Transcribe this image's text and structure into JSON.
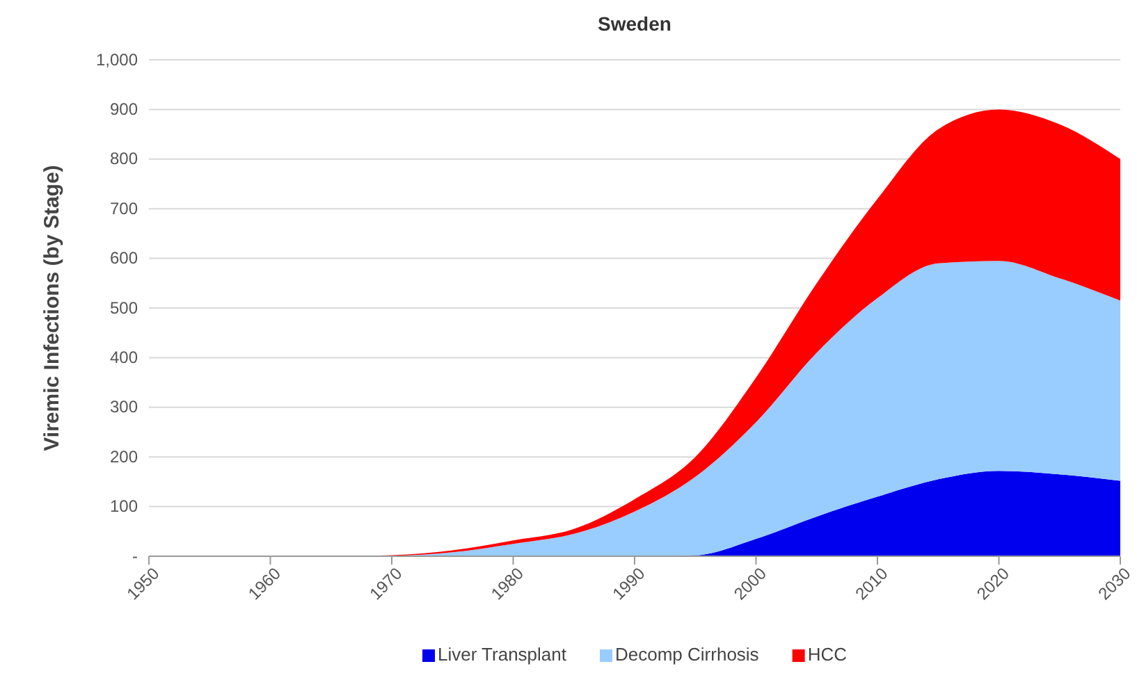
{
  "chart_data": {
    "type": "area",
    "stacked": true,
    "title": "Sweden",
    "ylabel": "Viremic Infections (by Stage)",
    "x": [
      1950,
      1960,
      1965,
      1970,
      1975,
      1980,
      1985,
      1990,
      1995,
      2000,
      2005,
      2010,
      2015,
      2020,
      2025,
      2030
    ],
    "series": [
      {
        "name": "Liver Transplant",
        "color": "#0000ee",
        "values": [
          0,
          0,
          0,
          0,
          0,
          0,
          0,
          0,
          2,
          35,
          80,
          120,
          155,
          172,
          165,
          152
        ]
      },
      {
        "name": "Decomp Cirrhosis",
        "color": "#99ccff",
        "values": [
          0,
          0,
          0,
          1,
          8,
          25,
          45,
          90,
          158,
          235,
          330,
          400,
          435,
          423,
          395,
          363
        ]
      },
      {
        "name": "HCC",
        "color": "#ff0000",
        "values": [
          0,
          0,
          0,
          1,
          4,
          7,
          10,
          25,
          40,
          90,
          140,
          200,
          270,
          305,
          310,
          285
        ]
      }
    ],
    "xlim": [
      1950,
      2030
    ],
    "xticks": [
      1950,
      1960,
      1970,
      1980,
      1990,
      2000,
      2010,
      2020,
      2030
    ],
    "ylim": [
      0,
      1000
    ],
    "yticks": [
      {
        "value": 0,
        "label": "-"
      },
      100,
      200,
      300,
      400,
      500,
      600,
      700,
      800,
      900,
      {
        "value": 1000,
        "label": "1,000"
      }
    ],
    "grid": "y",
    "legend": "bottom"
  }
}
